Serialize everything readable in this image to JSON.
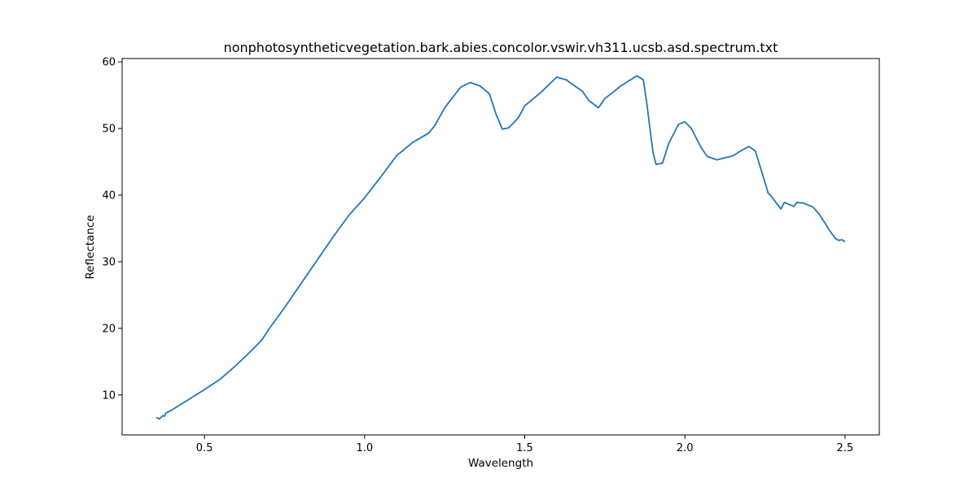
{
  "chart_data": {
    "type": "line",
    "title": "nonphotosyntheticvegetation.bark.abies.concolor.vswir.vh311.ucsb.asd.spectrum.txt",
    "xlabel": "Wavelength",
    "ylabel": "Reflectance",
    "xlim": [
      0.243,
      2.607
    ],
    "ylim": [
      4.0,
      60.5
    ],
    "xticks": [
      0.5,
      1.0,
      1.5,
      2.0,
      2.5
    ],
    "xtick_labels": [
      "0.5",
      "1.0",
      "1.5",
      "2.0",
      "2.5"
    ],
    "yticks": [
      10,
      20,
      30,
      40,
      50,
      60
    ],
    "ytick_labels": [
      "10",
      "20",
      "30",
      "40",
      "50",
      "60"
    ],
    "grid": false,
    "line_color": "#1f77b4",
    "series": [
      {
        "x": [
          0.35,
          0.36,
          0.37,
          0.375,
          0.38,
          0.4,
          0.45,
          0.5,
          0.55,
          0.6,
          0.65,
          0.68,
          0.7,
          0.75,
          0.8,
          0.85,
          0.9,
          0.95,
          1.0,
          1.05,
          1.1,
          1.15,
          1.2,
          1.22,
          1.25,
          1.3,
          1.33,
          1.36,
          1.39,
          1.41,
          1.43,
          1.45,
          1.48,
          1.5,
          1.55,
          1.6,
          1.63,
          1.65,
          1.68,
          1.7,
          1.73,
          1.75,
          1.78,
          1.8,
          1.83,
          1.85,
          1.87,
          1.88,
          1.9,
          1.91,
          1.93,
          1.95,
          1.98,
          2.0,
          2.02,
          2.05,
          2.07,
          2.1,
          2.15,
          2.18,
          2.2,
          2.22,
          2.24,
          2.26,
          2.27,
          2.3,
          2.31,
          2.32,
          2.34,
          2.35,
          2.37,
          2.4,
          2.42,
          2.44,
          2.45,
          2.47,
          2.48,
          2.49,
          2.5
        ],
        "y": [
          6.6,
          6.4,
          6.9,
          6.8,
          7.3,
          7.8,
          9.3,
          10.8,
          12.4,
          14.5,
          16.8,
          18.3,
          19.8,
          23.1,
          26.6,
          30.1,
          33.6,
          36.9,
          39.6,
          42.7,
          45.9,
          47.9,
          49.3,
          50.5,
          53.1,
          56.2,
          56.9,
          56.4,
          55.2,
          52.2,
          49.9,
          50.1,
          51.6,
          53.4,
          55.4,
          57.7,
          57.3,
          56.6,
          55.6,
          54.2,
          53.1,
          54.5,
          55.6,
          56.4,
          57.3,
          57.9,
          57.3,
          54.2,
          46.5,
          44.6,
          44.8,
          47.8,
          50.6,
          51.0,
          50.0,
          47.2,
          45.8,
          45.3,
          45.9,
          46.8,
          47.3,
          46.6,
          43.5,
          40.3,
          39.8,
          37.9,
          38.9,
          38.7,
          38.3,
          38.9,
          38.8,
          38.2,
          37.1,
          35.6,
          34.8,
          33.5,
          33.2,
          33.3,
          33.0
        ]
      }
    ]
  }
}
